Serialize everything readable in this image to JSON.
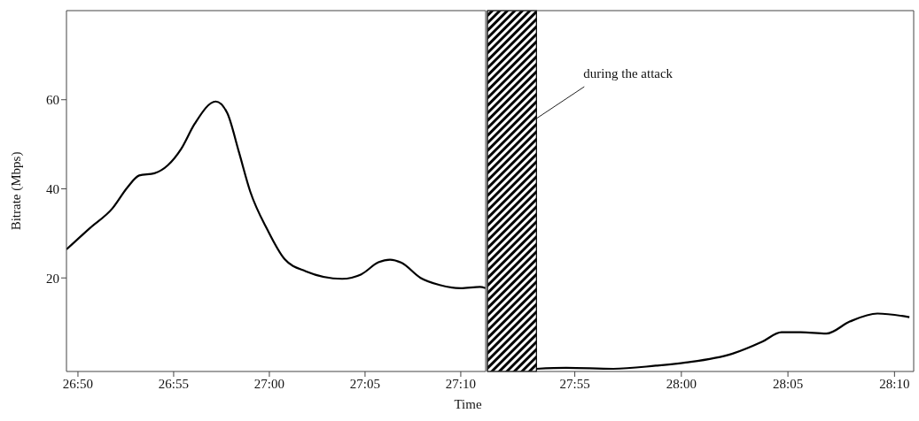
{
  "chart_data": [
    {
      "type": "line",
      "xlabel": "Time",
      "ylabel": "Bitrate (Mbps)",
      "x": [
        1609.4,
        1610.6,
        1611.8,
        1612.6,
        1613.2,
        1614.0,
        1614.7,
        1615.4,
        1616.1,
        1617.2,
        1617.8,
        1618.4,
        1619.0,
        1619.9,
        1620.8,
        1621.9,
        1623.8,
        1624.8,
        1625.7,
        1626.3,
        1626.9,
        1627.9,
        1628.9,
        1630.0,
        1631.0,
        1631.3
      ],
      "series": [
        {
          "color": "#000000",
          "values": [
            26.4,
            31.1,
            35.6,
            40.4,
            43.0,
            43.5,
            45.3,
            49.0,
            54.6,
            59.6,
            57.0,
            48.4,
            39.4,
            30.8,
            24.2,
            21.5,
            19.8,
            20.8,
            23.5,
            24.1,
            23.4,
            20.0,
            18.4,
            17.7,
            18.0,
            17.7
          ]
        }
      ],
      "xlim": [
        1609.4,
        1631.3
      ],
      "xticks": [
        {
          "value": 1610,
          "label": "26:50"
        },
        {
          "value": 1615,
          "label": "26:55"
        },
        {
          "value": 1620,
          "label": "27:00"
        },
        {
          "value": 1625,
          "label": "27:05"
        },
        {
          "value": 1630,
          "label": "27:10"
        }
      ],
      "ylim": [
        -1,
        80
      ],
      "yticks": [
        20,
        40,
        60
      ],
      "marker": "none",
      "line_style": "solid"
    },
    {
      "type": "line",
      "x": [
        1673.2,
        1674.6,
        1676.8,
        1678.8,
        1680.2,
        1682.4,
        1683.8,
        1684.7,
        1685.6,
        1686.8,
        1687.9,
        1689.2,
        1690.7
      ],
      "series": [
        {
          "color": "#000000",
          "values": [
            -0.4,
            -0.2,
            -0.4,
            0.3,
            1.0,
            3.0,
            5.7,
            7.8,
            7.8,
            7.5,
            10.2,
            12.0,
            11.2
          ]
        }
      ],
      "xlim": [
        1670.9,
        1690.9
      ],
      "xticks": [
        {
          "value": 1675,
          "label": "27:55"
        },
        {
          "value": 1680,
          "label": "28:00"
        },
        {
          "value": 1685,
          "label": "28:05"
        },
        {
          "value": 1690,
          "label": "28:10"
        }
      ],
      "ylim": [
        -1,
        80
      ],
      "tick_labels": "x",
      "bands": [
        {
          "axis": "x",
          "from": 1670.9,
          "to": 1673.2,
          "label": "during the attack",
          "color": "#000000"
        }
      ],
      "marker": "none",
      "line_style": "solid"
    }
  ]
}
